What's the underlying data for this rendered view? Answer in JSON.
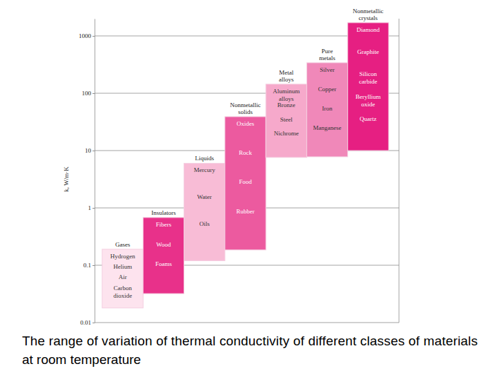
{
  "chart_data": {
    "type": "bar",
    "title": "The range of variation of thermal conductivity of different classes of materials at room temperature",
    "ylabel": "k, W/m·K",
    "categories": [
      "Gases",
      "Insulators",
      "Liquids",
      "Nonmetallic solids",
      "Metal alloys",
      "Pure metals",
      "Nonmetallic crystals"
    ],
    "values": [
      [
        0.018,
        0.19
      ],
      [
        0.032,
        0.68
      ],
      [
        0.12,
        6.0
      ],
      [
        0.185,
        39
      ],
      [
        7.6,
        144
      ],
      [
        7.8,
        340
      ],
      [
        10,
        1700
      ]
    ],
    "items": [
      [
        "Hydrogen",
        "Helium",
        "Air",
        "Carbon dioxide"
      ],
      [
        "Fibers",
        "Wood",
        "Foams"
      ],
      [
        "Mercury",
        "Water",
        "Oils"
      ],
      [
        "Oxides",
        "Rock",
        "Food",
        "Rubber"
      ],
      [
        "Aluminum alloys",
        "Bronze",
        "Steel",
        "Nichrome"
      ],
      [
        "Silver",
        "Copper",
        "Iron",
        "Manganese"
      ],
      [
        "Diamond",
        "Graphite",
        "Silicon carbide",
        "Beryllium oxide",
        "Quartz"
      ]
    ],
    "colors": [
      "#fde3ee",
      "#e8318a",
      "#f8bcd6",
      "#ec5a9f",
      "#f6a9cb",
      "#f088b9",
      "#e61f82"
    ],
    "ylim": [
      0.01,
      2000
    ],
    "yticks": [
      0.01,
      0.1,
      1,
      10,
      100,
      1000
    ],
    "log": "y",
    "grid": true,
    "tick_labels": "y"
  }
}
